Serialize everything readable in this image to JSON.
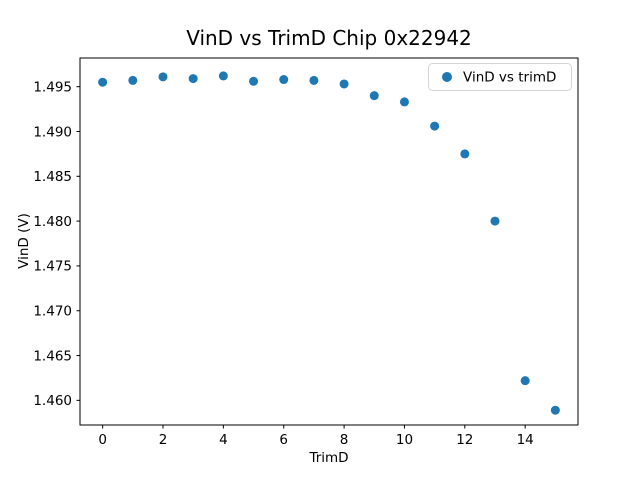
{
  "chart_data": {
    "type": "scatter",
    "title": "VinD vs TrimD Chip 0x22942",
    "xlabel": "TrimD",
    "ylabel": "VinD (V)",
    "series": [
      {
        "name": "VinD vs trimD",
        "color": "#1f77b4",
        "x": [
          0,
          1,
          2,
          3,
          4,
          5,
          6,
          7,
          8,
          9,
          10,
          11,
          12,
          13,
          14,
          15
        ],
        "y": [
          1.4955,
          1.4957,
          1.4961,
          1.4959,
          1.4962,
          1.4956,
          1.4958,
          1.4957,
          1.4953,
          1.494,
          1.4933,
          1.4906,
          1.4875,
          1.48,
          1.4622,
          1.4589
        ]
      }
    ],
    "legend": {
      "position": "upper right",
      "entries": [
        {
          "label": "VinD vs trimD",
          "marker": "circle",
          "color": "#1f77b4"
        }
      ]
    },
    "xlim": [
      -0.75,
      15.75
    ],
    "ylim": [
      1.45725,
      1.4982
    ],
    "xticks": [
      0,
      2,
      4,
      6,
      8,
      10,
      12,
      14
    ],
    "yticks": [
      1.46,
      1.465,
      1.47,
      1.475,
      1.48,
      1.485,
      1.49,
      1.495
    ],
    "ytick_decimals": 3,
    "grid": false,
    "marker_radius_px": 4.5,
    "axis_color": "#000000",
    "background": "#ffffff"
  }
}
